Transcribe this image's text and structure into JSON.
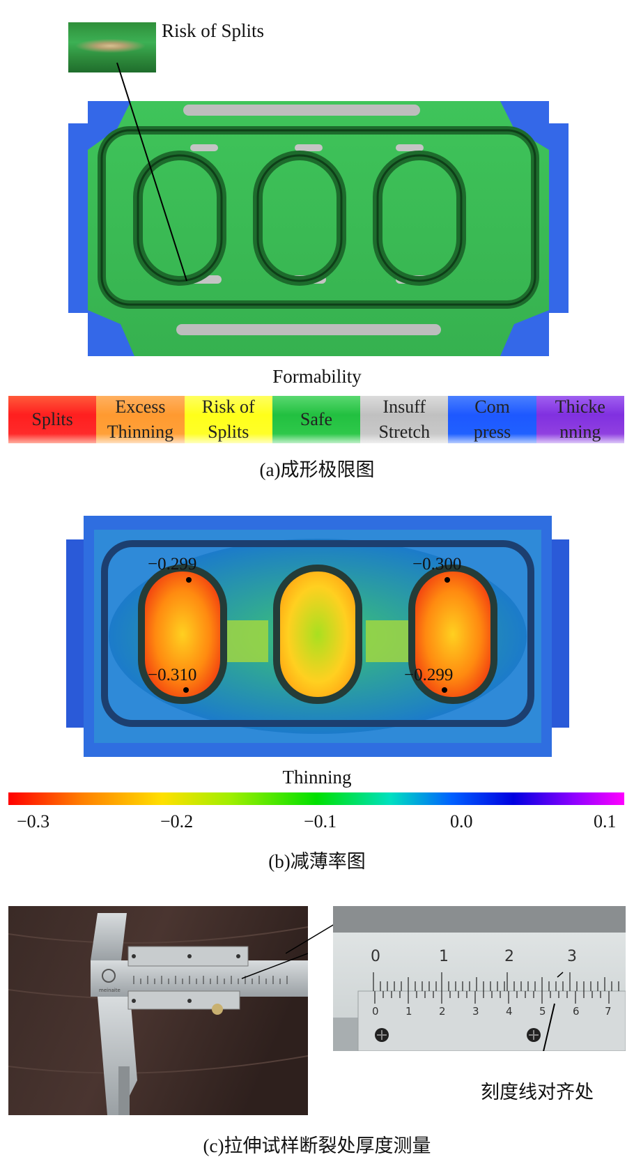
{
  "panel_a": {
    "inset_label": "Risk of Splits",
    "colorbar_title": "Formability",
    "legend": [
      {
        "label": "Splits",
        "color": "#ff2020",
        "text_color": "#222"
      },
      {
        "label": "Excess Thinning",
        "color": "#ff9a30",
        "text_color": "#222"
      },
      {
        "label": "Risk of Splits",
        "color": "#ffff20",
        "text_color": "#222"
      },
      {
        "label": "Safe",
        "color": "#2ec84a",
        "text_color": "#222"
      },
      {
        "label": "Insuff Stretch",
        "color": "#c8c8c8",
        "text_color": "#222"
      },
      {
        "label": "Com press",
        "color": "#2060ff",
        "text_color": "#222"
      },
      {
        "label": "Thicke nning",
        "color": "#9040e0",
        "text_color": "#222"
      }
    ],
    "caption": "(a)成形极限图"
  },
  "panel_b": {
    "annotations": [
      "−0.299",
      "−0.300",
      "−0.310",
      "−0.299"
    ],
    "colorbar_title": "Thinning",
    "colorbar_ticks": [
      "−0.3",
      "−0.2",
      "−0.1",
      "0.0",
      "0.1"
    ],
    "caption": "(b)减薄率图"
  },
  "panel_c": {
    "main_scale_numbers": [
      "0",
      "1",
      "2",
      "3"
    ],
    "vernier_numbers": [
      "0",
      "1",
      "2",
      "3",
      "4",
      "5",
      "6",
      "7"
    ],
    "caliper_brand": "meinaite",
    "alignment_label": "刻度线对齐处",
    "caption": "(c)拉伸试样断裂处厚度测量"
  }
}
